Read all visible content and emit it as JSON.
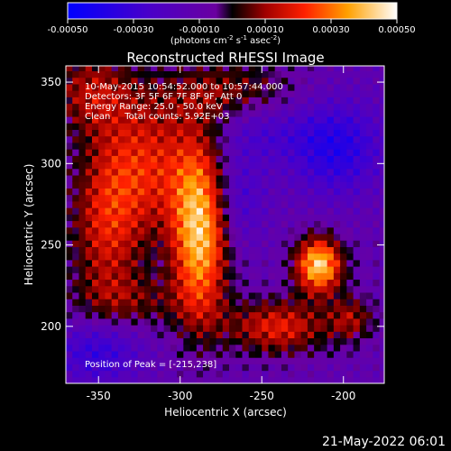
{
  "chart_data": {
    "type": "heatmap",
    "title": "Reconstructed RHESSI Image",
    "xlabel": "Heliocentric X (arcsec)",
    "ylabel": "Heliocentric Y (arcsec)",
    "xlim": [
      -370,
      -175
    ],
    "ylim": [
      165,
      360
    ],
    "x_ticks": [
      -350,
      -300,
      -250,
      -200
    ],
    "y_ticks": [
      200,
      250,
      300,
      350
    ],
    "colorbar": {
      "min": -0.0005,
      "max": 0.0005,
      "ticks": [
        "-0.00050",
        "-0.00030",
        "-0.00010",
        "0.00010",
        "0.00030",
        "0.00050"
      ],
      "units_prefix": "(photons cm",
      "units_exp1": "-2",
      "units_mid1": " s",
      "units_exp2": "-1",
      "units_mid2": " asec",
      "units_exp3": "-2",
      "units_suffix": ")"
    },
    "annotations": [
      "10-May-2015 10:54:52.000 to 10:57:44.000",
      "Detectors: 3F 5F 6F 7F 8F 9F, Att 0",
      "Energy Range: 25.0 - 50.0 keV",
      "Clean     Total counts: 5.92E+03"
    ],
    "peak_text": "Position of Peak = [-215,238]",
    "peak": [
      -215,
      238
    ],
    "sources": [
      {
        "x": -288,
        "y": 258,
        "sx": 12,
        "sy": 38,
        "amp": 0.00052
      },
      {
        "x": -320,
        "y": 300,
        "sx": 22,
        "sy": 30,
        "amp": 0.00028
      },
      {
        "x": -345,
        "y": 260,
        "sx": 16,
        "sy": 35,
        "amp": 0.00026
      },
      {
        "x": -215,
        "y": 238,
        "sx": 10,
        "sy": 12,
        "amp": 0.00055
      },
      {
        "x": -240,
        "y": 200,
        "sx": 22,
        "sy": 12,
        "amp": 0.0003
      },
      {
        "x": -355,
        "y": 345,
        "sx": 18,
        "sy": 18,
        "amp": 0.00022
      },
      {
        "x": -270,
        "y": 345,
        "sx": 30,
        "sy": 14,
        "amp": 0.00018
      },
      {
        "x": -330,
        "y": 215,
        "sx": 25,
        "sy": 12,
        "amp": 0.00014
      },
      {
        "x": -195,
        "y": 205,
        "sx": 10,
        "sy": 10,
        "amp": 0.0002
      },
      {
        "x": -250,
        "y": 320,
        "sx": 20,
        "sy": 12,
        "amp": -0.00012
      },
      {
        "x": -205,
        "y": 310,
        "sx": 20,
        "sy": 20,
        "amp": -0.00026
      },
      {
        "x": -350,
        "y": 185,
        "sx": 18,
        "sy": 14,
        "amp": -0.00022
      },
      {
        "x": -265,
        "y": 280,
        "sx": 12,
        "sy": 20,
        "amp": -0.00015
      }
    ]
  },
  "footer_timestamp": "21-May-2022 06:01"
}
